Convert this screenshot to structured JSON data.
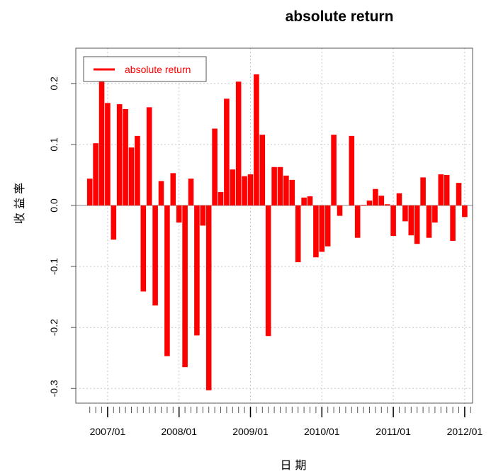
{
  "chart_data": {
    "type": "bar",
    "title": "absolute return",
    "xlabel": "日 期",
    "ylabel": "收 益 率",
    "ylim": [
      -0.32,
      0.26
    ],
    "yticks": [
      -0.3,
      -0.2,
      -0.1,
      0.0,
      0.1,
      0.2
    ],
    "ytick_labels": [
      "-0.3",
      "-0.2",
      "-0.1",
      "0.0",
      "0.1",
      "0.2"
    ],
    "xtick_labels": [
      "2007/01",
      "2008/01",
      "2009/01",
      "2010/01",
      "2011/01",
      "2012/01"
    ],
    "start_month": "2006/10",
    "grid": true,
    "legend_position": "top-left",
    "colors": {
      "bar": "#ff0000",
      "grid": "#c8c8c8",
      "axis": "#555555"
    },
    "series": [
      {
        "name": "absolute return",
        "values": [
          0.044,
          0.102,
          0.205,
          0.168,
          -0.056,
          0.166,
          0.158,
          0.095,
          0.114,
          -0.141,
          0.161,
          -0.164,
          0.04,
          -0.247,
          0.053,
          -0.028,
          -0.265,
          0.044,
          -0.213,
          -0.033,
          -0.303,
          0.126,
          0.022,
          0.175,
          0.059,
          0.203,
          0.048,
          0.051,
          0.215,
          0.116,
          -0.214,
          0.063,
          0.063,
          0.049,
          0.042,
          -0.093,
          0.013,
          0.015,
          -0.085,
          -0.076,
          -0.067,
          0.116,
          -0.017,
          0.0,
          0.114,
          -0.053,
          0.001,
          0.008,
          0.027,
          0.016,
          0.002,
          -0.05,
          0.02,
          -0.026,
          -0.049,
          -0.063,
          0.046,
          -0.053,
          -0.028,
          0.051,
          0.05,
          -0.058,
          0.037,
          -0.019
        ]
      }
    ]
  }
}
